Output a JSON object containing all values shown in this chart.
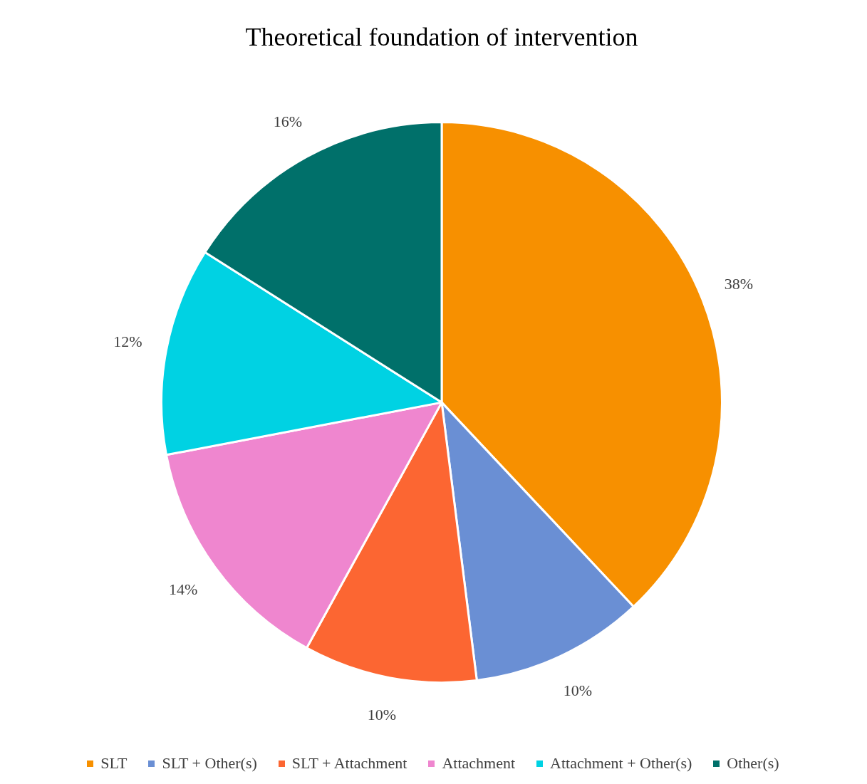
{
  "chart_data": {
    "type": "pie",
    "title": "Theoretical foundation of intervention",
    "categories": [
      "SLT",
      "SLT + Other(s)",
      "SLT + Attachment",
      "Attachment",
      "Attachment + Other(s)",
      "Other(s)"
    ],
    "values": [
      38,
      10,
      10,
      14,
      12,
      16
    ],
    "value_labels": [
      "38%",
      "10%",
      "10%",
      "14%",
      "12%",
      "16%"
    ],
    "colors": [
      "#f79000",
      "#6a8fd4",
      "#fc6632",
      "#ef86cf",
      "#00d2e3",
      "#00706a"
    ],
    "legend": "bottom"
  }
}
